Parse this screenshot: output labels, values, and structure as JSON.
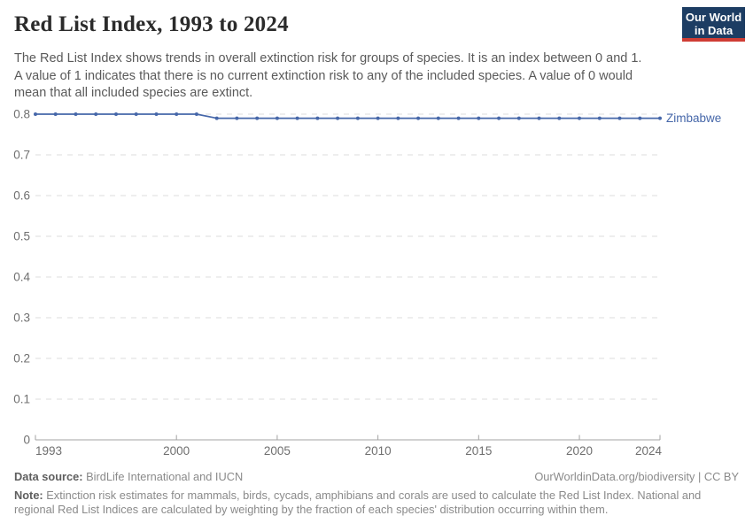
{
  "logo": {
    "line1": "Our World",
    "line2": "in Data"
  },
  "header": {
    "title": "Red List Index, 1993 to 2024",
    "subtitle_lines": [
      "The Red List Index shows trends in overall extinction risk for groups of species. It is an index between 0 and 1.",
      "A value of 1 indicates that there is no current extinction risk to any of the included species. A value of 0 would",
      "mean that all included species are extinct."
    ]
  },
  "chart_data": {
    "type": "line",
    "title": "Red List Index, 1993 to 2024",
    "xlabel": "",
    "ylabel": "",
    "xlim": [
      1993,
      2024
    ],
    "ylim": [
      0,
      0.8
    ],
    "grid": "horizontal-dashed",
    "legend_position": "end-of-line-label",
    "x_ticks": [
      1993,
      2000,
      2005,
      2010,
      2015,
      2020,
      2024
    ],
    "y_ticks": [
      0,
      0.1,
      0.2,
      0.3,
      0.4,
      0.5,
      0.6,
      0.7,
      0.8
    ],
    "y_tick_labels": [
      "0",
      "0.1",
      "0.2",
      "0.3",
      "0.4",
      "0.5",
      "0.6",
      "0.7",
      "0.8"
    ],
    "series": [
      {
        "name": "Zimbabwe",
        "color": "#4667a9",
        "x": [
          1993,
          1994,
          1995,
          1996,
          1997,
          1998,
          1999,
          2000,
          2001,
          2002,
          2003,
          2004,
          2005,
          2006,
          2007,
          2008,
          2009,
          2010,
          2011,
          2012,
          2013,
          2014,
          2015,
          2016,
          2017,
          2018,
          2019,
          2020,
          2021,
          2022,
          2023,
          2024
        ],
        "values": [
          0.8,
          0.8,
          0.8,
          0.8,
          0.8,
          0.8,
          0.8,
          0.8,
          0.8,
          0.79,
          0.79,
          0.79,
          0.79,
          0.79,
          0.79,
          0.79,
          0.79,
          0.79,
          0.79,
          0.79,
          0.79,
          0.79,
          0.79,
          0.79,
          0.79,
          0.79,
          0.79,
          0.79,
          0.79,
          0.79,
          0.79,
          0.79
        ]
      }
    ]
  },
  "footer": {
    "source_label": "Data source:",
    "source_value": " BirdLife International and IUCN",
    "link": "OurWorldinData.org/biodiversity | CC BY",
    "note_label": "Note:",
    "note_lines": [
      " Extinction risk estimates for mammals, birds, cycads, amphibians and corals are used to calculate the Red List Index. National and",
      "regional Red List Indices are calculated by weighting by the fraction of each species' distribution occurring within them."
    ]
  },
  "colors": {
    "accent_line": "#4667a9",
    "logo_bg": "#1d3d63",
    "logo_accent": "#cf3d34",
    "gridline": "#dcdcdc",
    "axis": "#a3a3a3",
    "tick_text": "#6f6f6f"
  }
}
